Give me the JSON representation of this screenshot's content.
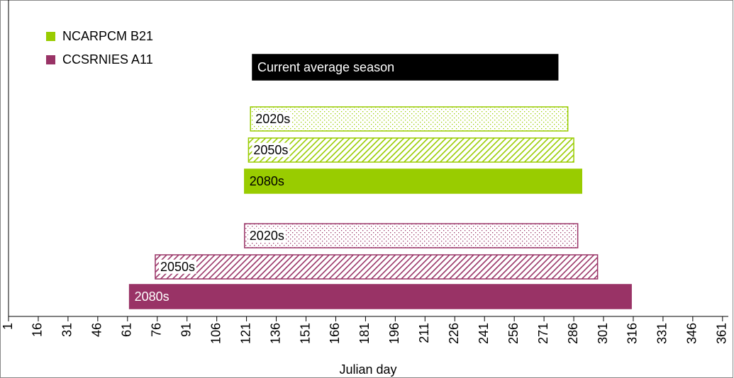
{
  "chart_data": {
    "type": "floating-bar",
    "x_label": "Julian day",
    "xlim": [
      1,
      365
    ],
    "xticks": [
      1,
      16,
      31,
      46,
      61,
      76,
      91,
      106,
      121,
      136,
      151,
      166,
      181,
      196,
      211,
      226,
      241,
      256,
      271,
      286,
      301,
      316,
      331,
      346,
      361
    ],
    "grid": false,
    "legend": "upper left",
    "reference": {
      "label": "Current average season",
      "start": 124,
      "end": 278,
      "color": "#000000"
    },
    "series": [
      {
        "name": "NCARPCM B21",
        "color": "#99cc00",
        "bars": [
          {
            "label": "2020s",
            "start": 123,
            "end": 283,
            "pattern": "dots"
          },
          {
            "label": "2050s",
            "start": 122,
            "end": 286,
            "pattern": "hatch"
          },
          {
            "label": "2080s",
            "start": 120,
            "end": 290,
            "pattern": "solid"
          }
        ]
      },
      {
        "name": "CCSRNIES A11",
        "color": "#993366",
        "bars": [
          {
            "label": "2020s",
            "start": 120,
            "end": 288,
            "pattern": "dots"
          },
          {
            "label": "2050s",
            "start": 75,
            "end": 298,
            "pattern": "hatch"
          },
          {
            "label": "2080s",
            "start": 62,
            "end": 315,
            "pattern": "solid"
          }
        ]
      }
    ]
  }
}
